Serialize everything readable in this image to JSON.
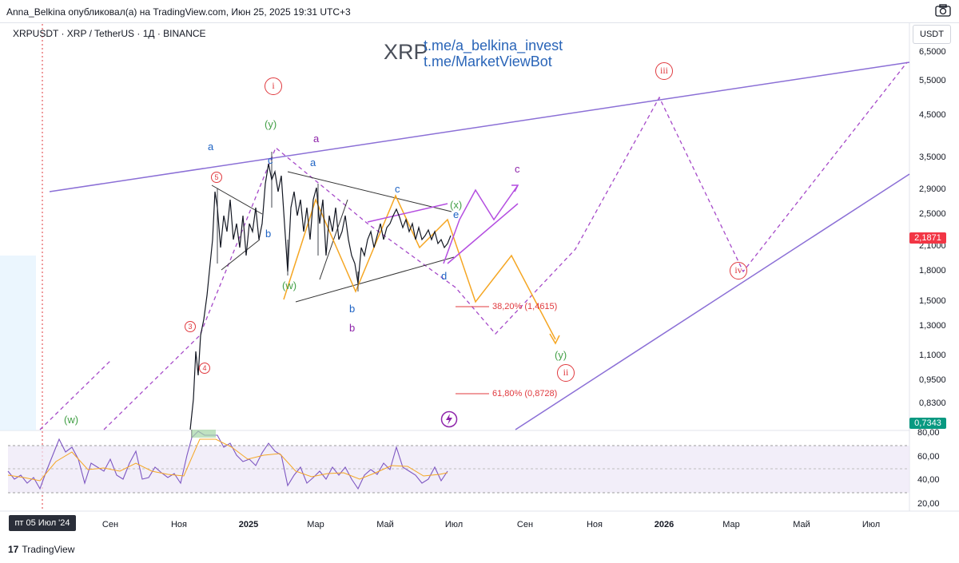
{
  "header": {
    "publisher": "Anna_Belkina опубликовал(а) на TradingView.com, Июн 25, 2025 19:31 UTC+3"
  },
  "chart": {
    "symbol_line": "XRPUSDT · XRP / TetherUS · 1Д · BINANCE",
    "watermark": "XRP",
    "links": [
      "t.me/a_belkina_invest",
      "t.me/MarketViewBot"
    ],
    "currency_button": "USDT",
    "price_ticks": [
      "6,5000",
      "5,5000",
      "4,5000",
      "3,5000",
      "2,9000",
      "2,5000",
      "2,1000",
      "1,8000",
      "1,5000",
      "1,3000",
      "1,1000",
      "0,9500",
      "0,8300"
    ],
    "last_price": "2,1871",
    "low_price": "0,7343",
    "rsi_ticks": [
      "80,00",
      "60,00",
      "40,00",
      "20,00"
    ],
    "time_ticks": [
      "Сен",
      "Ноя",
      "2025",
      "Мар",
      "Май",
      "Июл",
      "Сен",
      "Ноя",
      "2026",
      "Мар",
      "Май",
      "Июл"
    ],
    "date_badge": "пт 05 Июл '24",
    "fib_levels": [
      "38,20% (1,4615)",
      "61,80% (0,8728)"
    ],
    "wave_labels": {
      "w": "(w)",
      "y1": "(y)",
      "y2": "(y)",
      "w2": "(w)",
      "x": "(x)",
      "a1": "a",
      "a2": "a",
      "a3": "a",
      "b1": "b",
      "b2": "b",
      "b3": "b",
      "c1": "c",
      "c2": "c",
      "c3": "c",
      "d": "d",
      "e": "e",
      "i": "i",
      "ii": "ii",
      "iii": "iii",
      "iv": "iv",
      "n3": "3",
      "n4": "4",
      "n5": "5"
    },
    "colors": {
      "bull": "#26a69a",
      "bear": "#ef5350",
      "purple_line": "#8b6fd6",
      "dashed_purple": "#a64ac9",
      "orange": "#f5a623",
      "magenta": "#b44ee0",
      "price_red": "#f23645",
      "price_green": "#089981",
      "rsi": "#7e57c2"
    }
  },
  "footer": {
    "brand": "TradingView"
  }
}
